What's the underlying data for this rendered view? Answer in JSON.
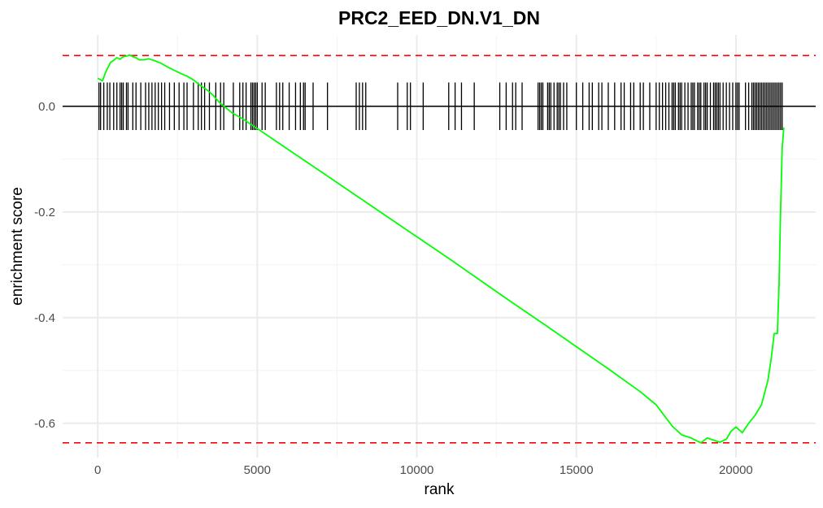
{
  "chart_data": {
    "type": "line",
    "title": "PRC2_EED_DN.V1_DN",
    "xlabel": "rank",
    "ylabel": "enrichment score",
    "xlim": [
      -1100,
      22500
    ],
    "ylim": [
      -0.665,
      0.135
    ],
    "x_ticks": [
      0,
      5000,
      10000,
      15000,
      20000
    ],
    "x_tick_labels": [
      "0",
      "5000",
      "10000",
      "15000",
      "20000"
    ],
    "y_ticks": [
      0.0,
      -0.2,
      -0.4,
      -0.6
    ],
    "y_tick_labels": [
      "0.0",
      "-0.2",
      "-0.4",
      "-0.6"
    ],
    "grid": true,
    "legend": "none",
    "colors": {
      "curve": "#00ff00",
      "threshold": "#ff0000",
      "hits": "#000000",
      "zero_line": "#000000"
    },
    "thresholds": [
      0.096,
      -0.637
    ],
    "series": [
      {
        "x": [
          0,
          150,
          250,
          400,
          500,
          600,
          700,
          800,
          900,
          1000,
          1100,
          1200,
          1300,
          1450,
          1600,
          1800,
          2000,
          2200,
          2400,
          2600,
          2800,
          3000,
          3200,
          3400,
          3600,
          3800,
          4000,
          4200,
          4500,
          4800,
          5000,
          6000,
          7000,
          8000,
          9000,
          10000,
          11000,
          12000,
          13000,
          14000,
          15000,
          16000,
          17000,
          17500,
          18000,
          18300,
          18600,
          18900,
          19100,
          19300,
          19500,
          19700,
          19850,
          20000,
          20200,
          20400,
          20600,
          20800,
          21000,
          21100,
          21200,
          21300,
          21350,
          21400,
          21450,
          21500
        ],
        "y": [
          0.053,
          0.048,
          0.065,
          0.083,
          0.087,
          0.092,
          0.089,
          0.094,
          0.095,
          0.097,
          0.094,
          0.092,
          0.088,
          0.088,
          0.09,
          0.086,
          0.081,
          0.074,
          0.068,
          0.062,
          0.057,
          0.05,
          0.04,
          0.032,
          0.022,
          0.008,
          -0.002,
          -0.012,
          -0.022,
          -0.034,
          -0.042,
          -0.083,
          -0.124,
          -0.165,
          -0.206,
          -0.247,
          -0.288,
          -0.33,
          -0.372,
          -0.413,
          -0.455,
          -0.497,
          -0.54,
          -0.565,
          -0.605,
          -0.622,
          -0.628,
          -0.637,
          -0.628,
          -0.632,
          -0.636,
          -0.63,
          -0.615,
          -0.607,
          -0.618,
          -0.6,
          -0.585,
          -0.565,
          -0.52,
          -0.48,
          -0.43,
          -0.43,
          -0.34,
          -0.2,
          -0.08,
          -0.04
        ]
      }
    ],
    "hits": [
      40,
      90,
      190,
      300,
      380,
      500,
      600,
      700,
      750,
      800,
      900,
      950,
      1100,
      1200,
      1350,
      1500,
      1600,
      1700,
      1800,
      1900,
      2000,
      2100,
      2250,
      2400,
      2550,
      2700,
      2800,
      3000,
      3150,
      3250,
      3350,
      3500,
      3700,
      3850,
      3950,
      4250,
      4450,
      4550,
      4650,
      4800,
      4850,
      4900,
      4950,
      5000,
      5150,
      5250,
      5600,
      5700,
      5800,
      6000,
      6200,
      6350,
      6450,
      6500,
      6750,
      7200,
      8100,
      8200,
      8300,
      8400,
      9400,
      9700,
      9800,
      10200,
      11000,
      11200,
      11400,
      11800,
      12600,
      12800,
      13000,
      13100,
      13300,
      13800,
      13850,
      13900,
      13950,
      14100,
      14150,
      14200,
      14300,
      14400,
      14450,
      14500,
      14600,
      14700,
      15000,
      15200,
      15400,
      15500,
      15700,
      15800,
      16000,
      16200,
      16400,
      16500,
      16700,
      16800,
      17000,
      17100,
      17300,
      17500,
      17600,
      17700,
      17800,
      17900,
      18000,
      18050,
      18100,
      18200,
      18250,
      18300,
      18400,
      18500,
      18600,
      18650,
      18700,
      18800,
      18850,
      18900,
      19000,
      19050,
      19100,
      19200,
      19300,
      19350,
      19400,
      19450,
      19500,
      19600,
      19700,
      19800,
      19900,
      20000,
      20050,
      20100,
      20300,
      20400,
      20500,
      20550,
      20600,
      20650,
      20700,
      20750,
      20800,
      20850,
      20900,
      20950,
      21000,
      21050,
      21100,
      21150,
      21200,
      21250,
      21300,
      21350,
      21400,
      21450
    ]
  }
}
